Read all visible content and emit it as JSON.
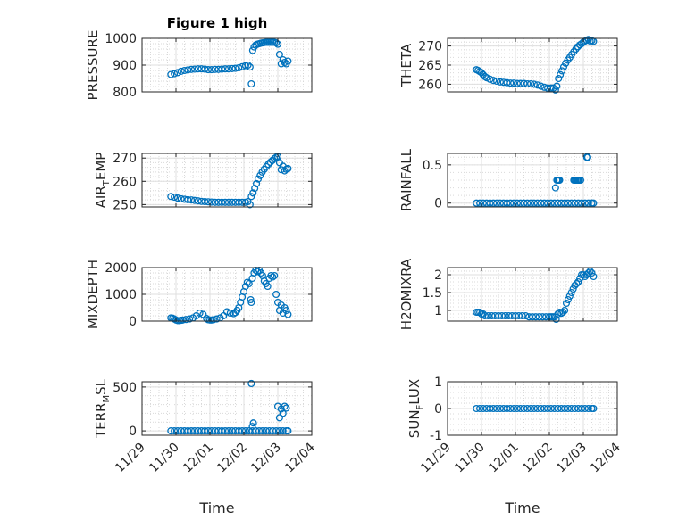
{
  "figure": {
    "title": "Figure 1 high",
    "xlabel": "Time",
    "marker_color": "#0072BD"
  },
  "chart_data": [
    {
      "type": "scatter",
      "panel": "PRESSURE",
      "ylabel": {
        "main": "PRESSURE",
        "sub": ""
      },
      "title": "Figure 1 high",
      "ylim": [
        800,
        1000
      ],
      "yticks": [
        800,
        900,
        1000
      ],
      "ytick_labels": [
        "800",
        "900",
        "1000"
      ],
      "xlim": [
        0,
        5
      ],
      "xticks": [
        0,
        1,
        2,
        3,
        4,
        5
      ],
      "xtick_labels": [
        "11/29",
        "11/30",
        "12/01",
        "12/02",
        "12/03",
        "12/04"
      ],
      "xaxis_labels_shown": false,
      "grid": true,
      "x": [
        0.85,
        0.95,
        1.05,
        1.15,
        1.25,
        1.35,
        1.45,
        1.55,
        1.65,
        1.75,
        1.85,
        1.95,
        2.05,
        2.15,
        2.25,
        2.35,
        2.45,
        2.55,
        2.65,
        2.75,
        2.85,
        2.95,
        3.05,
        3.12,
        3.18,
        3.22,
        3.26,
        3.3,
        3.35,
        3.4,
        3.45,
        3.5,
        3.55,
        3.6,
        3.65,
        3.7,
        3.75,
        3.8,
        3.85,
        3.9,
        3.95,
        4.0,
        4.05,
        4.1,
        4.15,
        4.2,
        4.25,
        4.3
      ],
      "y": [
        865,
        868,
        872,
        877,
        880,
        882,
        884,
        885,
        886,
        886,
        885,
        883,
        883,
        884,
        884,
        885,
        886,
        886,
        887,
        888,
        890,
        894,
        898,
        900,
        893,
        830,
        955,
        968,
        975,
        978,
        980,
        982,
        983,
        984,
        985,
        985,
        985,
        985,
        985,
        985,
        983,
        978,
        940,
        905,
        920,
        910,
        905,
        915
      ]
    },
    {
      "type": "scatter",
      "panel": "THETA",
      "ylabel": {
        "main": "THETA",
        "sub": ""
      },
      "ylim": [
        258,
        272
      ],
      "yticks": [
        260,
        265,
        270
      ],
      "ytick_labels": [
        "260",
        "265",
        "270"
      ],
      "xlim": [
        0,
        5
      ],
      "xticks": [
        0,
        1,
        2,
        3,
        4,
        5
      ],
      "xtick_labels": [
        "11/29",
        "11/30",
        "12/01",
        "12/02",
        "12/03",
        "12/04"
      ],
      "xaxis_labels_shown": false,
      "grid": true,
      "x": [
        0.85,
        0.9,
        0.95,
        1.0,
        1.05,
        1.1,
        1.15,
        1.25,
        1.35,
        1.45,
        1.55,
        1.65,
        1.75,
        1.85,
        1.95,
        2.05,
        2.15,
        2.25,
        2.35,
        2.45,
        2.55,
        2.65,
        2.75,
        2.85,
        2.95,
        3.05,
        3.12,
        3.18,
        3.22,
        3.27,
        3.32,
        3.37,
        3.42,
        3.48,
        3.54,
        3.6,
        3.66,
        3.72,
        3.78,
        3.84,
        3.9,
        3.95,
        4.0,
        4.05,
        4.1,
        4.15,
        4.2,
        4.25,
        4.3
      ],
      "y": [
        263.8,
        263.6,
        263.3,
        263.0,
        262.5,
        262.0,
        261.7,
        261.3,
        261.0,
        260.8,
        260.6,
        260.5,
        260.4,
        260.3,
        260.3,
        260.2,
        260.2,
        260.2,
        260.1,
        260.1,
        260.0,
        259.8,
        259.5,
        259.2,
        259.0,
        259.0,
        259.0,
        258.5,
        259.5,
        261.5,
        262.5,
        263.5,
        264.5,
        265.5,
        266.3,
        267.0,
        267.8,
        268.5,
        269.2,
        269.8,
        270.3,
        270.6,
        271.0,
        271.3,
        271.5,
        271.7,
        271.3,
        271.4,
        271.2
      ]
    },
    {
      "type": "scatter",
      "panel": "AIR_TEMP",
      "ylabel": {
        "main": "AIR",
        "sub": "T",
        "rest": "EMP"
      },
      "ylim": [
        249,
        272
      ],
      "yticks": [
        250,
        260,
        270
      ],
      "ytick_labels": [
        "250",
        "260",
        "270"
      ],
      "xlim": [
        0,
        5
      ],
      "xticks": [
        0,
        1,
        2,
        3,
        4,
        5
      ],
      "xtick_labels": [
        "11/29",
        "11/30",
        "12/01",
        "12/02",
        "12/03",
        "12/04"
      ],
      "xaxis_labels_shown": false,
      "grid": true,
      "x": [
        0.85,
        0.95,
        1.05,
        1.15,
        1.25,
        1.35,
        1.45,
        1.55,
        1.65,
        1.75,
        1.85,
        1.95,
        2.05,
        2.15,
        2.25,
        2.35,
        2.45,
        2.55,
        2.65,
        2.75,
        2.85,
        2.95,
        3.05,
        3.12,
        3.18,
        3.22,
        3.27,
        3.32,
        3.37,
        3.42,
        3.48,
        3.54,
        3.6,
        3.66,
        3.72,
        3.78,
        3.84,
        3.9,
        3.95,
        4.0,
        4.05,
        4.1,
        4.15,
        4.2,
        4.25,
        4.3
      ],
      "y": [
        253.5,
        253.2,
        252.8,
        252.5,
        252.3,
        252.1,
        252.0,
        251.8,
        251.6,
        251.4,
        251.3,
        251.2,
        251.1,
        251.0,
        251.0,
        251.0,
        251.0,
        251.0,
        251.0,
        251.0,
        251.0,
        251.0,
        251.0,
        251.3,
        250.0,
        253.5,
        255.0,
        257.0,
        259.0,
        261.0,
        262.5,
        264.0,
        265.2,
        266.3,
        267.3,
        268.2,
        269.0,
        269.8,
        270.3,
        270.6,
        268.0,
        265.0,
        266.5,
        264.5,
        265.2,
        265.5
      ]
    },
    {
      "type": "scatter",
      "panel": "RAINFALL",
      "ylabel": {
        "main": "RAINFALL",
        "sub": ""
      },
      "ylim": [
        -0.05,
        0.65
      ],
      "yticks": [
        0,
        0.5
      ],
      "ytick_labels": [
        "0",
        "0.5"
      ],
      "xlim": [
        0,
        5
      ],
      "xticks": [
        0,
        1,
        2,
        3,
        4,
        5
      ],
      "xtick_labels": [
        "11/29",
        "11/30",
        "12/01",
        "12/02",
        "12/03",
        "12/04"
      ],
      "xaxis_labels_shown": false,
      "grid": true,
      "x": [
        0.85,
        0.95,
        1.05,
        1.15,
        1.25,
        1.35,
        1.45,
        1.55,
        1.65,
        1.75,
        1.85,
        1.95,
        2.05,
        2.15,
        2.25,
        2.35,
        2.45,
        2.55,
        2.65,
        2.75,
        2.85,
        2.95,
        3.05,
        3.15,
        3.25,
        3.35,
        3.45,
        3.55,
        3.65,
        3.75,
        3.85,
        3.95,
        4.05,
        4.15,
        4.25,
        4.3,
        3.18,
        3.22,
        3.25,
        3.28,
        3.3,
        3.72,
        3.75,
        3.78,
        3.82,
        3.85,
        3.88,
        3.92,
        4.1,
        4.13
      ],
      "y": [
        0,
        0,
        0,
        0,
        0,
        0,
        0,
        0,
        0,
        0,
        0,
        0,
        0,
        0,
        0,
        0,
        0,
        0,
        0,
        0,
        0,
        0,
        0,
        0,
        0,
        0,
        0,
        0,
        0,
        0,
        0,
        0,
        0,
        0,
        0,
        0,
        0.2,
        0.3,
        0.3,
        0.3,
        0.3,
        0.3,
        0.3,
        0.3,
        0.3,
        0.3,
        0.3,
        0.3,
        0.6,
        0.6
      ]
    },
    {
      "type": "scatter",
      "panel": "MIXDEPTH",
      "ylabel": {
        "main": "MIXDEPTH",
        "sub": ""
      },
      "ylim": [
        0,
        2000
      ],
      "yticks": [
        0,
        1000,
        2000
      ],
      "ytick_labels": [
        "0",
        "1000",
        "2000"
      ],
      "xlim": [
        0,
        5
      ],
      "xticks": [
        0,
        1,
        2,
        3,
        4,
        5
      ],
      "xtick_labels": [
        "11/29",
        "11/30",
        "12/01",
        "12/02",
        "12/03",
        "12/04"
      ],
      "xaxis_labels_shown": false,
      "grid": true,
      "x": [
        0.85,
        0.9,
        0.95,
        1.0,
        1.05,
        1.1,
        1.15,
        1.2,
        1.3,
        1.4,
        1.5,
        1.6,
        1.7,
        1.8,
        1.9,
        1.95,
        2.0,
        2.05,
        2.1,
        2.2,
        2.3,
        2.4,
        2.5,
        2.6,
        2.7,
        2.75,
        2.8,
        2.85,
        2.9,
        2.95,
        3.0,
        3.05,
        3.1,
        3.15,
        3.2,
        3.22,
        3.25,
        3.3,
        3.35,
        3.4,
        3.45,
        3.5,
        3.55,
        3.6,
        3.65,
        3.7,
        3.75,
        3.8,
        3.85,
        3.9,
        3.95,
        4.0,
        4.05,
        4.1,
        4.15,
        4.2,
        4.25,
        4.3
      ],
      "y": [
        120,
        110,
        80,
        40,
        20,
        20,
        30,
        40,
        60,
        80,
        120,
        200,
        300,
        250,
        100,
        50,
        40,
        40,
        50,
        80,
        120,
        200,
        350,
        300,
        280,
        320,
        400,
        500,
        700,
        900,
        1100,
        1300,
        1450,
        1400,
        800,
        700,
        1600,
        1800,
        1900,
        1850,
        1900,
        1800,
        1700,
        1500,
        1400,
        1300,
        1600,
        1700,
        1650,
        1700,
        1000,
        700,
        400,
        600,
        300,
        500,
        400,
        250
      ]
    },
    {
      "type": "scatter",
      "panel": "H2OMIXRA",
      "ylabel": {
        "main": "H2OMIXRA",
        "sub": ""
      },
      "ylim": [
        0.7,
        2.2
      ],
      "yticks": [
        1,
        1.5,
        2
      ],
      "ytick_labels": [
        "1",
        "1.5",
        "2"
      ],
      "xlim": [
        0,
        5
      ],
      "xticks": [
        0,
        1,
        2,
        3,
        4,
        5
      ],
      "xtick_labels": [
        "11/29",
        "11/30",
        "12/01",
        "12/02",
        "12/03",
        "12/04"
      ],
      "xaxis_labels_shown": false,
      "grid": true,
      "x": [
        0.85,
        0.9,
        0.95,
        1.0,
        1.05,
        1.1,
        1.2,
        1.3,
        1.4,
        1.5,
        1.6,
        1.7,
        1.8,
        1.9,
        2.0,
        2.1,
        2.2,
        2.3,
        2.4,
        2.5,
        2.6,
        2.7,
        2.8,
        2.9,
        3.0,
        3.05,
        3.1,
        3.15,
        3.2,
        3.25,
        3.3,
        3.35,
        3.4,
        3.45,
        3.5,
        3.55,
        3.6,
        3.65,
        3.7,
        3.75,
        3.8,
        3.85,
        3.9,
        3.95,
        4.0,
        4.05,
        4.1,
        4.15,
        4.2,
        4.25,
        4.3
      ],
      "y": [
        0.95,
        0.95,
        0.95,
        0.9,
        0.9,
        0.85,
        0.85,
        0.85,
        0.85,
        0.85,
        0.85,
        0.85,
        0.85,
        0.85,
        0.85,
        0.85,
        0.85,
        0.85,
        0.82,
        0.82,
        0.82,
        0.82,
        0.82,
        0.82,
        0.82,
        0.82,
        0.82,
        0.82,
        0.75,
        0.9,
        0.95,
        0.92,
        0.95,
        1.0,
        1.2,
        1.3,
        1.4,
        1.5,
        1.6,
        1.7,
        1.75,
        1.8,
        1.9,
        2.0,
        2.0,
        1.95,
        2.0,
        2.05,
        2.1,
        2.05,
        1.95
      ]
    },
    {
      "type": "scatter",
      "panel": "TERR_MSL",
      "ylabel": {
        "main": "TERR",
        "sub": "M",
        "rest": "SL"
      },
      "ylim": [
        -50,
        560
      ],
      "yticks": [
        0,
        500
      ],
      "ytick_labels": [
        "0",
        "500"
      ],
      "xlim": [
        0,
        5
      ],
      "xticks": [
        0,
        1,
        2,
        3,
        4,
        5
      ],
      "xtick_labels": [
        "11/29",
        "11/30",
        "12/01",
        "12/02",
        "12/03",
        "12/04"
      ],
      "xaxis_labels_shown": true,
      "grid": true,
      "x": [
        0.85,
        0.95,
        1.05,
        1.15,
        1.25,
        1.35,
        1.45,
        1.55,
        1.65,
        1.75,
        1.85,
        1.95,
        2.05,
        2.15,
        2.25,
        2.35,
        2.45,
        2.55,
        2.65,
        2.75,
        2.85,
        2.95,
        3.05,
        3.15,
        3.25,
        3.35,
        3.45,
        3.55,
        3.65,
        3.75,
        3.85,
        3.95,
        4.05,
        4.15,
        4.25,
        4.3,
        3.22,
        3.25,
        3.28,
        4.0,
        4.05,
        4.1,
        4.15,
        4.2,
        4.25
      ],
      "y": [
        0,
        0,
        0,
        0,
        0,
        0,
        0,
        0,
        0,
        0,
        0,
        0,
        0,
        0,
        0,
        0,
        0,
        0,
        0,
        0,
        0,
        0,
        0,
        0,
        0,
        0,
        0,
        0,
        0,
        0,
        0,
        0,
        0,
        0,
        0,
        0,
        540,
        50,
        90,
        280,
        150,
        250,
        200,
        280,
        260
      ]
    },
    {
      "type": "scatter",
      "panel": "SUN_FLUX",
      "ylabel": {
        "main": "SUN",
        "sub": "F",
        "rest": "LUX"
      },
      "ylim": [
        -1,
        1
      ],
      "yticks": [
        -1,
        0,
        1
      ],
      "ytick_labels": [
        "-1",
        "0",
        "1"
      ],
      "xlim": [
        0,
        5
      ],
      "xticks": [
        0,
        1,
        2,
        3,
        4,
        5
      ],
      "xtick_labels": [
        "11/29",
        "11/30",
        "12/01",
        "12/02",
        "12/03",
        "12/04"
      ],
      "xaxis_labels_shown": true,
      "grid": true,
      "x": [
        0.85,
        0.95,
        1.05,
        1.15,
        1.25,
        1.35,
        1.45,
        1.55,
        1.65,
        1.75,
        1.85,
        1.95,
        2.05,
        2.15,
        2.25,
        2.35,
        2.45,
        2.55,
        2.65,
        2.75,
        2.85,
        2.95,
        3.05,
        3.15,
        3.25,
        3.35,
        3.45,
        3.55,
        3.65,
        3.75,
        3.85,
        3.95,
        4.05,
        4.15,
        4.25,
        4.3
      ],
      "y": [
        0,
        0,
        0,
        0,
        0,
        0,
        0,
        0,
        0,
        0,
        0,
        0,
        0,
        0,
        0,
        0,
        0,
        0,
        0,
        0,
        0,
        0,
        0,
        0,
        0,
        0,
        0,
        0,
        0,
        0,
        0,
        0,
        0,
        0,
        0,
        0
      ]
    }
  ]
}
